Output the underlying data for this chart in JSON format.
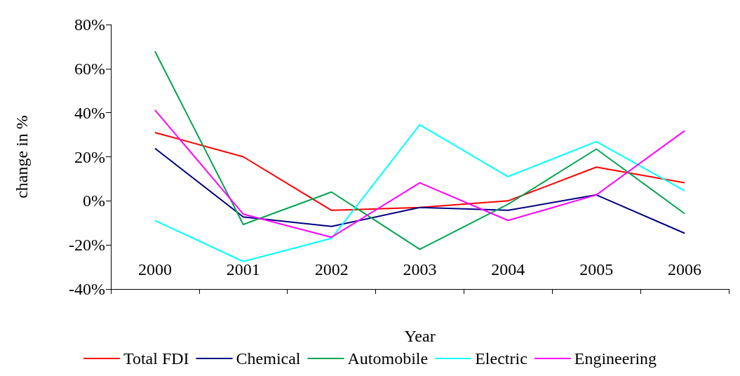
{
  "chart_data": {
    "type": "line",
    "xlabel": "Year",
    "ylabel": "change in %",
    "categories": [
      "2000",
      "2001",
      "2002",
      "2003",
      "2004",
      "2005",
      "2006"
    ],
    "series": [
      {
        "name": "Total FDI",
        "color": "#ff0000",
        "values": [
          31,
          20,
          -4.3,
          -3,
          0,
          15.3,
          8.2
        ]
      },
      {
        "name": "Chemical",
        "color": "#000080",
        "values": [
          23.8,
          -7.3,
          -11.6,
          -3,
          -4.3,
          2.7,
          -14.7
        ]
      },
      {
        "name": "Automobile",
        "color": "#00a550",
        "values": [
          67.8,
          -10.7,
          4,
          -22,
          -1.5,
          23.5,
          -5.8
        ]
      },
      {
        "name": "Electric",
        "color": "#00ffff",
        "values": [
          -8.9,
          -27.5,
          -17,
          34.5,
          11,
          26.9,
          4.6
        ]
      },
      {
        "name": "Engineering",
        "color": "#ff00ff",
        "values": [
          41.2,
          -6,
          -16.5,
          8.2,
          -8.9,
          2.7,
          31.8
        ]
      }
    ],
    "ylim": [
      -40,
      80
    ],
    "yticks": [
      {
        "value": -40,
        "label": "-40%"
      },
      {
        "value": -20,
        "label": "-20%"
      },
      {
        "value": 0,
        "label": "0%"
      },
      {
        "value": 20,
        "label": "20%"
      },
      {
        "value": 40,
        "label": "40%"
      },
      {
        "value": 60,
        "label": "60%"
      },
      {
        "value": 80,
        "label": "80%"
      }
    ],
    "grid": false,
    "legend": "bottom",
    "marker": "none",
    "line_style": "solid"
  }
}
